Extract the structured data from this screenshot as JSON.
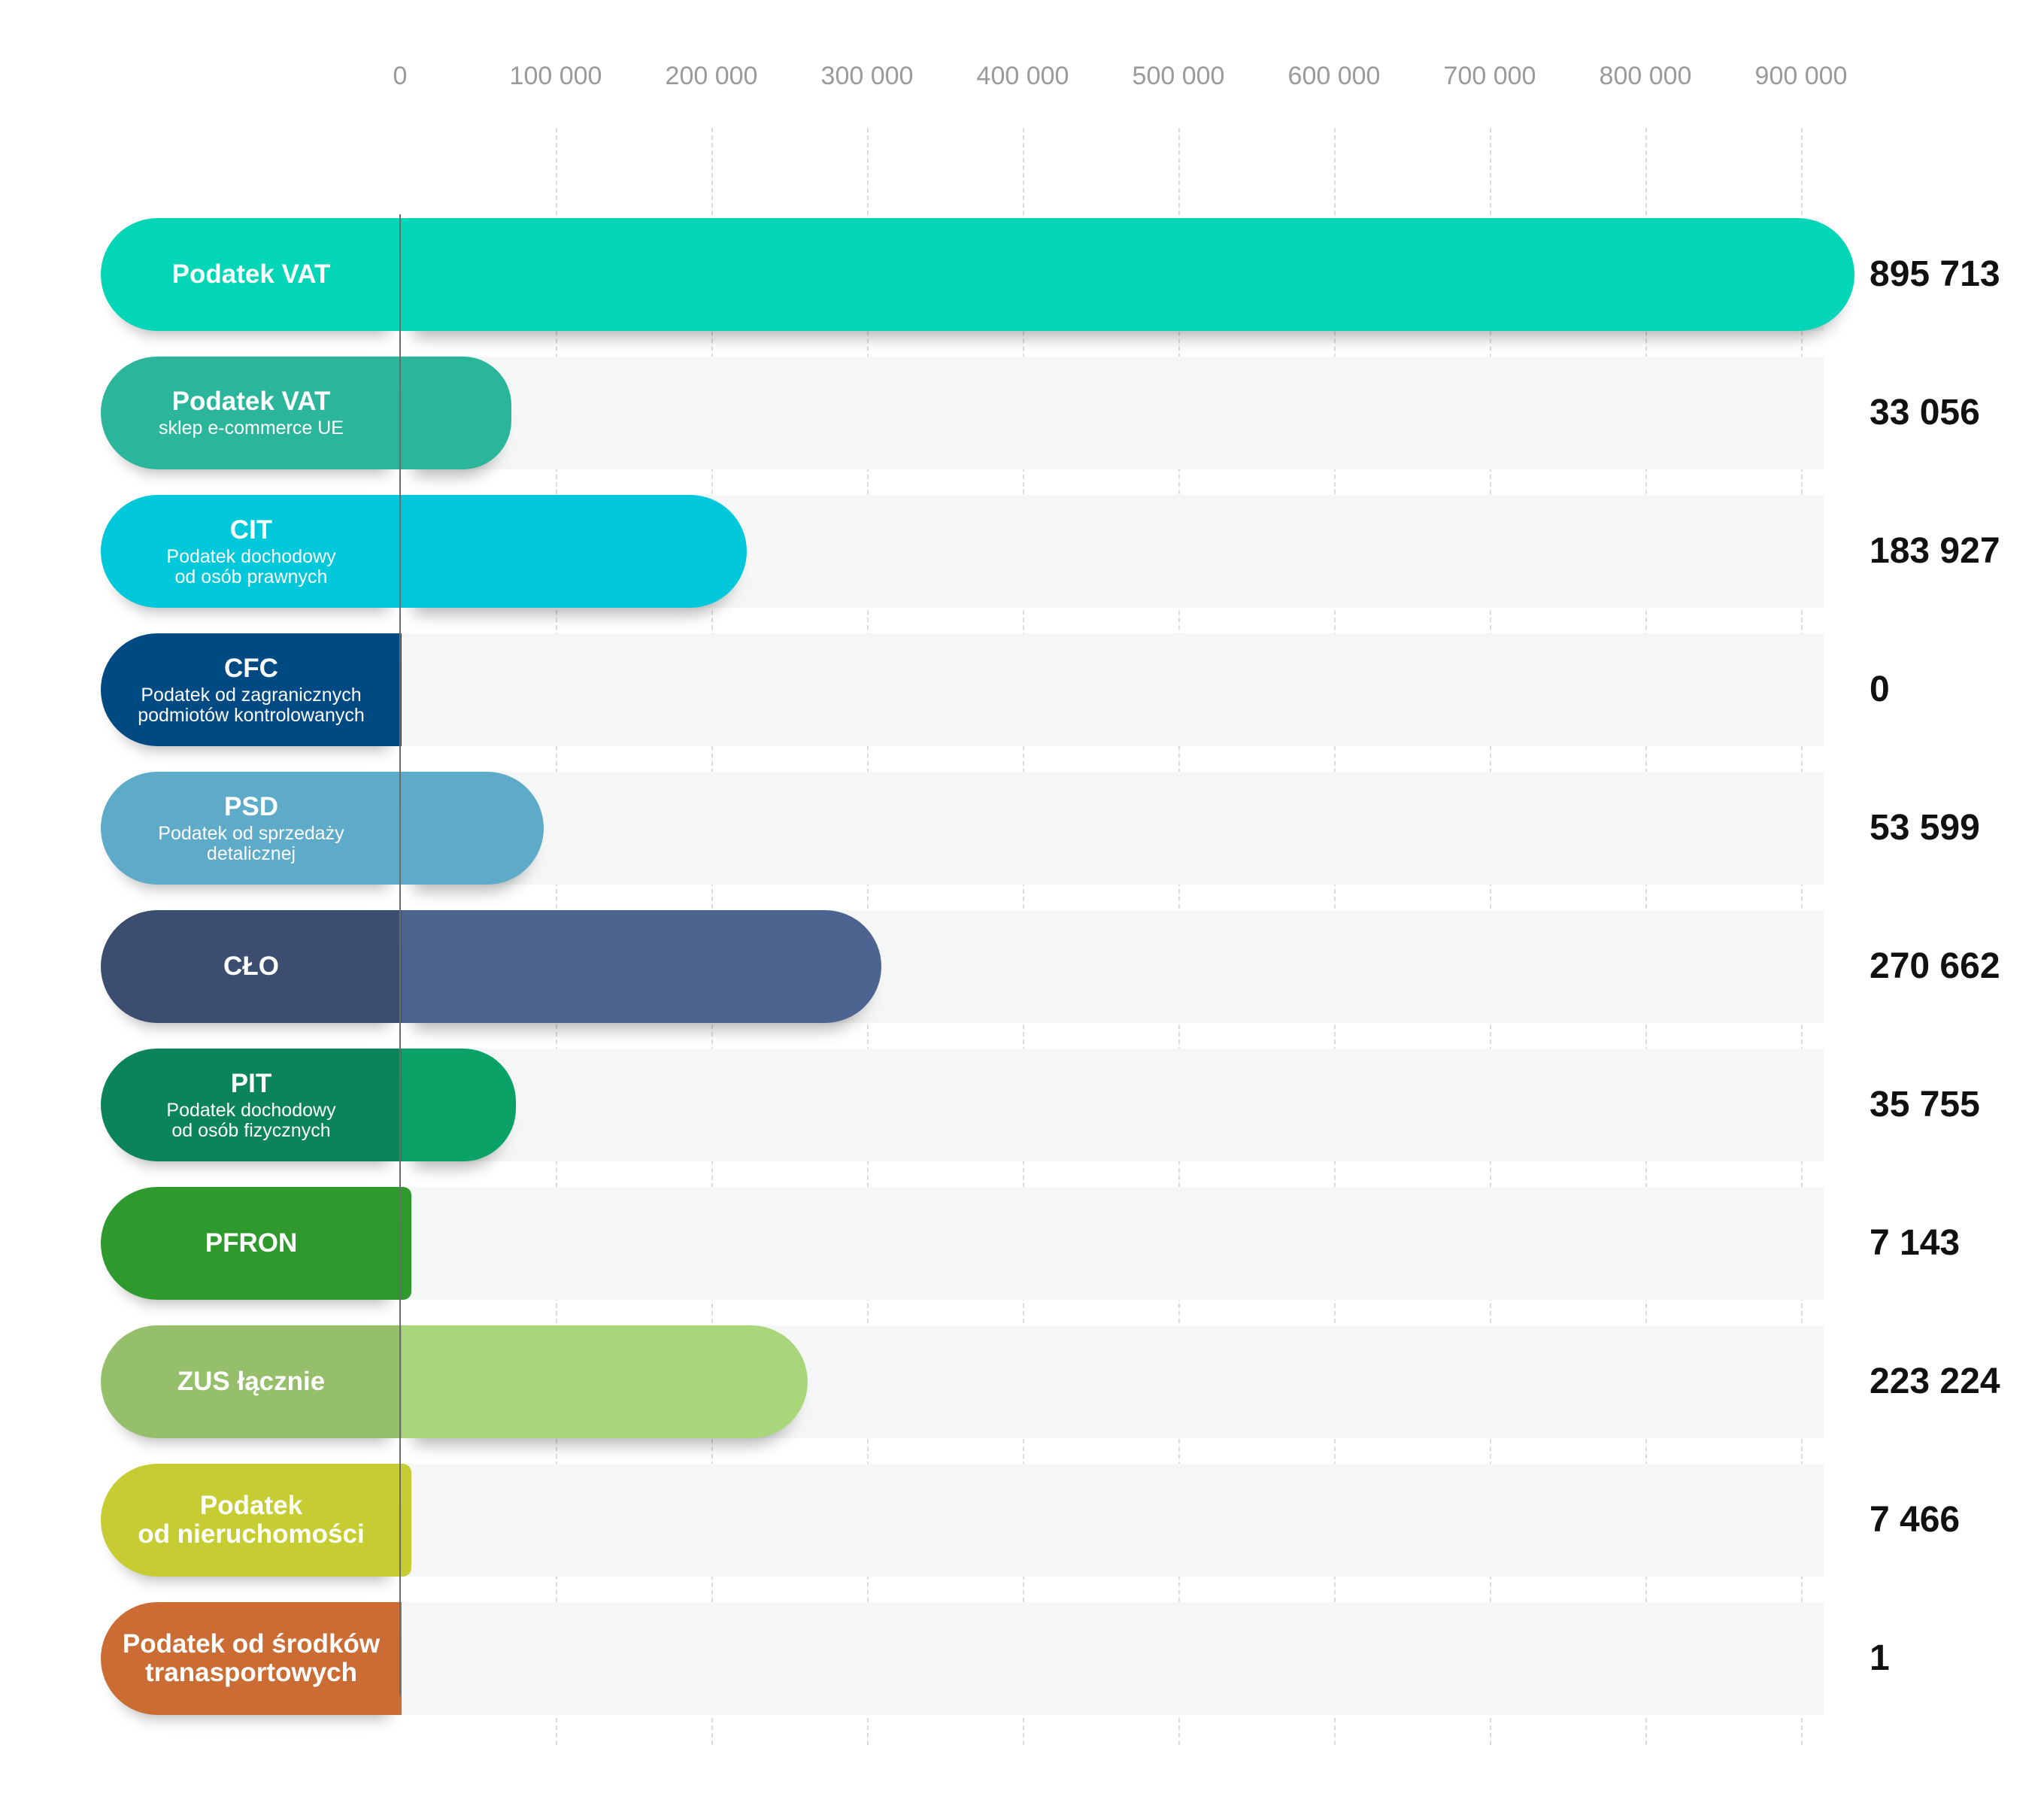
{
  "chart_data": {
    "type": "bar",
    "orientation": "horizontal",
    "title": "",
    "xlabel": "",
    "ylabel": "",
    "xlim": [
      0,
      900000
    ],
    "x_ticks": [
      {
        "value": 0,
        "label": "0"
      },
      {
        "value": 100000,
        "label": "100 000"
      },
      {
        "value": 200000,
        "label": "200 000"
      },
      {
        "value": 300000,
        "label": "300 000"
      },
      {
        "value": 400000,
        "label": "400 000"
      },
      {
        "value": 500000,
        "label": "500 000"
      },
      {
        "value": 600000,
        "label": "600 000"
      },
      {
        "value": 700000,
        "label": "700 000"
      },
      {
        "value": 800000,
        "label": "800 000"
      },
      {
        "value": 900000,
        "label": "900 000"
      }
    ],
    "x_axis_position": "top",
    "grid": true,
    "legend": "none",
    "categories": [
      {
        "name": "Podatek VAT",
        "sub": "",
        "value": 895713,
        "value_label": "895 713",
        "color": "#03d6b6",
        "label_color": "#03d6b6"
      },
      {
        "name": "Podatek VAT",
        "sub": "sklep e-commerce UE",
        "value": 33056,
        "value_label": "33 056",
        "color": "#2bb69b",
        "label_color": "#2bb69b"
      },
      {
        "name": "CIT",
        "sub": "Podatek dochodowy\nod osób prawnych",
        "value": 183927,
        "value_label": "183 927",
        "color": "#00c8db",
        "label_color": "#00c8db"
      },
      {
        "name": "CFC",
        "sub": "Podatek od zagranicznych\npodmiotów kontrolowanych",
        "value": 0,
        "value_label": "0",
        "color": "#004a84",
        "label_color": "#004a84"
      },
      {
        "name": "PSD",
        "sub": "Podatek od sprzedaży\ndetalicznej",
        "value": 53599,
        "value_label": "53 599",
        "color": "#5eaac9",
        "label_color": "#5eaac9"
      },
      {
        "name": "CŁO",
        "sub": "",
        "value": 270662,
        "value_label": "270 662",
        "color": "#4c648f",
        "label_color": "#3b4e6f"
      },
      {
        "name": "PIT",
        "sub": "Podatek dochodowy\nod osób fizycznych",
        "value": 35755,
        "value_label": "35 755",
        "color": "#0aa266",
        "label_color": "#0a8458"
      },
      {
        "name": "PFRON",
        "sub": "",
        "value": 7143,
        "value_label": "7 143",
        "color": "#2e9a2e",
        "label_color": "#2e9a2e"
      },
      {
        "name": "ZUS łącznie",
        "sub": "",
        "value": 223224,
        "value_label": "223 224",
        "color": "#a9d67a",
        "label_color": "#96bf6c"
      },
      {
        "name": "Podatek\nod nieruchomości",
        "sub": "",
        "value": 7466,
        "value_label": "7 466",
        "color": "#c5cd33",
        "label_color": "#c5cd33"
      },
      {
        "name": "Podatek od środków\ntranasportowych",
        "sub": "",
        "value": 1,
        "value_label": "1",
        "color": "#cc6c35",
        "label_color": "#cc6c35"
      }
    ]
  }
}
